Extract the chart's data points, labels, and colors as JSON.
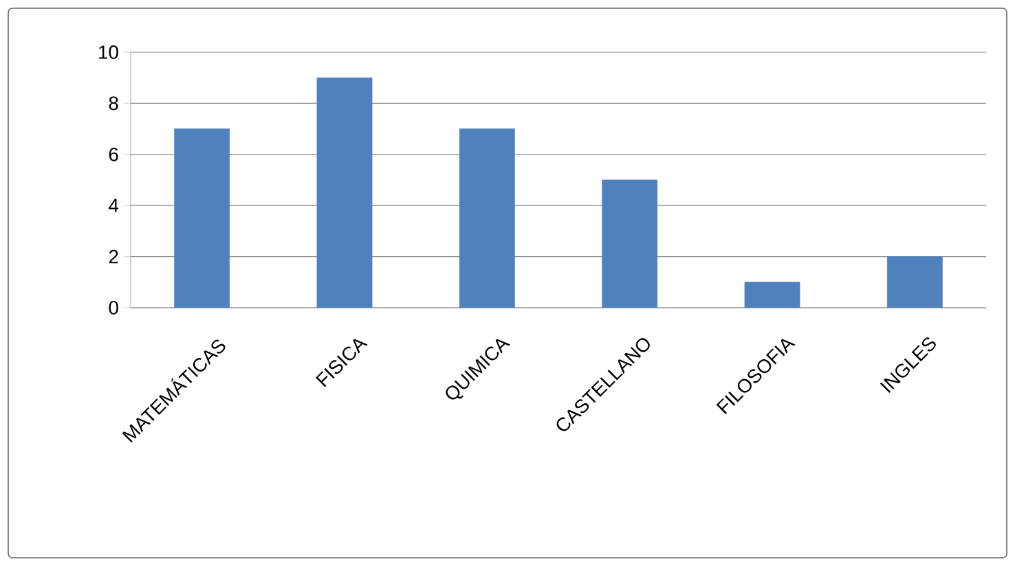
{
  "chart_data": {
    "type": "bar",
    "categories": [
      "MATEMÁTICAS",
      "FISICA",
      "QUIMICA",
      "CASTELLANO",
      "FILOSOFIA",
      "INGLES"
    ],
    "values": [
      7,
      9,
      7,
      5,
      1,
      2
    ],
    "color": "#4f81bd",
    "ylim": [
      0,
      10
    ],
    "yticks": [
      0,
      2,
      4,
      6,
      8,
      10
    ],
    "grid": "y"
  }
}
